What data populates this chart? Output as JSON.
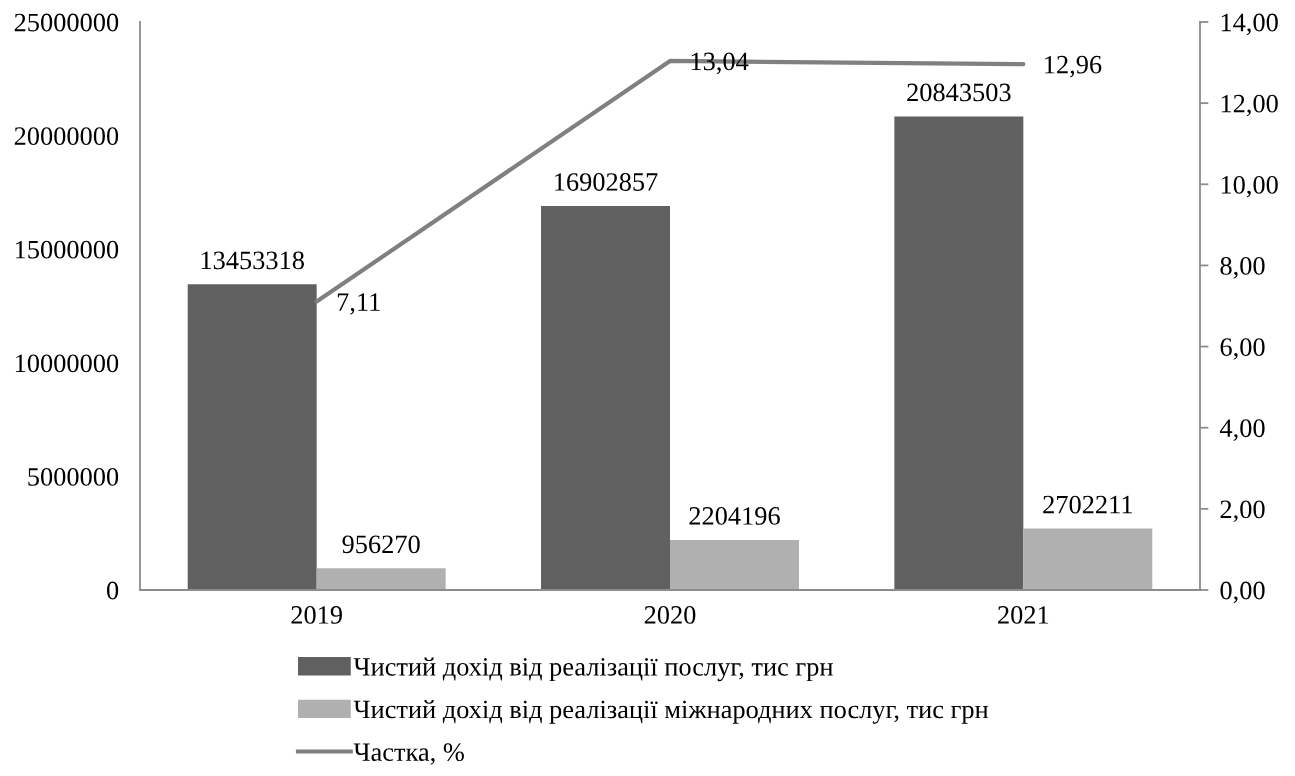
{
  "chart_data": {
    "type": "bar",
    "categories": [
      "2019",
      "2020",
      "2021"
    ],
    "series": [
      {
        "name": "Чистий дохід від реалізації послуг, тис грн",
        "color": "#606060",
        "values": [
          13453318,
          16902857,
          20843503
        ],
        "value_labels": [
          "13453318",
          "16902857",
          "20843503"
        ]
      },
      {
        "name": "Чистий дохід від реалізації міжнародних послуг, тис грн",
        "color": "#b0b0b0",
        "values": [
          956270,
          2204196,
          2702211
        ],
        "value_labels": [
          "956270",
          "2204196",
          "2702211"
        ]
      },
      {
        "name": "Частка, %",
        "type": "line",
        "axis": "y2",
        "color": "#808080",
        "values": [
          7.11,
          13.04,
          12.96
        ],
        "value_labels": [
          "7,11",
          "13,04",
          "12,96"
        ]
      }
    ],
    "ylim": [
      0,
      25000000
    ],
    "yticks": [
      0,
      5000000,
      10000000,
      15000000,
      20000000,
      25000000
    ],
    "y2lim": [
      0,
      14
    ],
    "y2ticks": [
      {
        "value": 0,
        "label": "0,00"
      },
      {
        "value": 2,
        "label": "2,00"
      },
      {
        "value": 4,
        "label": "4,00"
      },
      {
        "value": 6,
        "label": "6,00"
      },
      {
        "value": 8,
        "label": "8,00"
      },
      {
        "value": 10,
        "label": "10,00"
      },
      {
        "value": 12,
        "label": "12,00"
      },
      {
        "value": 14,
        "label": "14,00"
      }
    ],
    "legend": "bottom"
  }
}
